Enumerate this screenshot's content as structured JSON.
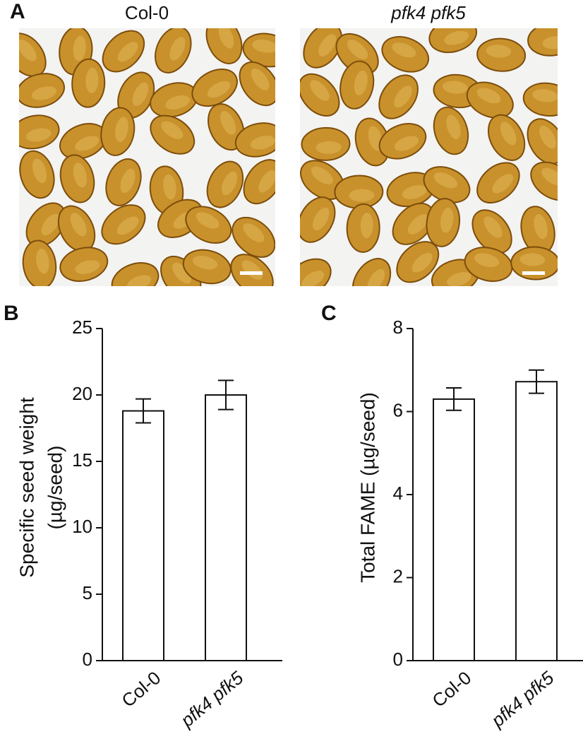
{
  "panel_a": {
    "label": "A",
    "images": [
      {
        "title": "Col-0"
      },
      {
        "title": "pfk4 pfk5"
      }
    ]
  },
  "chart_data": [
    {
      "type": "bar",
      "panel_label": "B",
      "ylabel_lines": [
        "Specific seed weight",
        "(µg/seed)"
      ],
      "categories": [
        "Col-0",
        "pfk4 pfk5"
      ],
      "values": [
        18.8,
        20.0
      ],
      "errors": [
        0.9,
        1.1
      ],
      "color": "#ffffff",
      "ylim": [
        0,
        25
      ],
      "yticks": [
        0,
        5,
        10,
        15,
        20,
        25
      ]
    },
    {
      "type": "bar",
      "panel_label": "C",
      "ylabel_lines": [
        "Total FAME (µg/seed)"
      ],
      "categories": [
        "Col-0",
        "pfk4 pfk5"
      ],
      "values": [
        6.3,
        6.72
      ],
      "errors": [
        0.27,
        0.28
      ],
      "color": "#ffffff",
      "ylim": [
        0,
        8
      ],
      "yticks": [
        0,
        2,
        4,
        6,
        8
      ]
    }
  ]
}
